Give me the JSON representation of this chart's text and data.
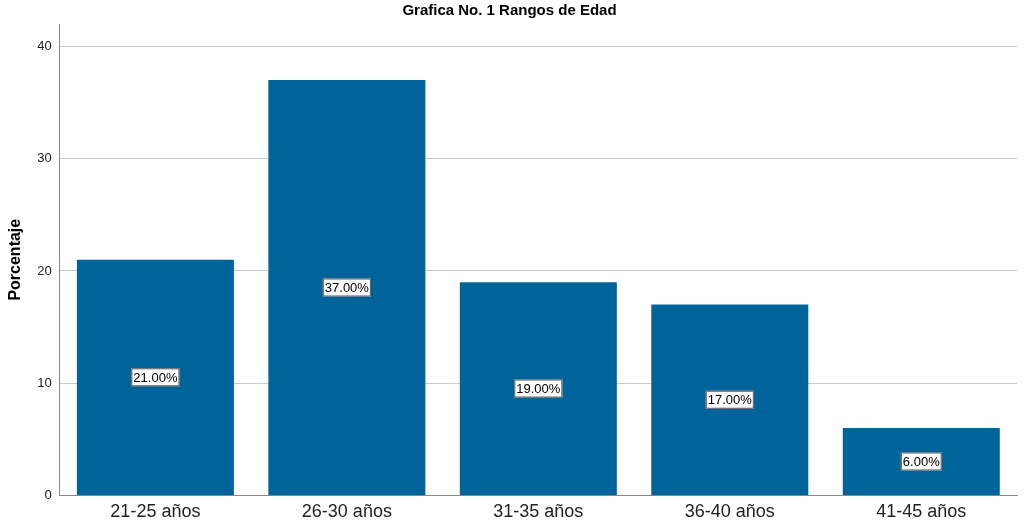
{
  "chart_data": {
    "type": "bar",
    "title": "Grafica No. 1 Rangos de Edad",
    "ylabel": "Porcentaje",
    "categories": [
      "21-25 años",
      "26-30 años",
      "31-35 años",
      "36-40 años",
      "41-45 años"
    ],
    "values": [
      21,
      37,
      19,
      17,
      6
    ],
    "value_labels": [
      "21.00%",
      "37.00%",
      "19.00%",
      "17.00%",
      "6.00%"
    ],
    "color": "#00639a",
    "ylim": [
      0,
      42
    ],
    "yticks": [
      0,
      10,
      20,
      30,
      40
    ],
    "grid": "y",
    "legend": false
  }
}
